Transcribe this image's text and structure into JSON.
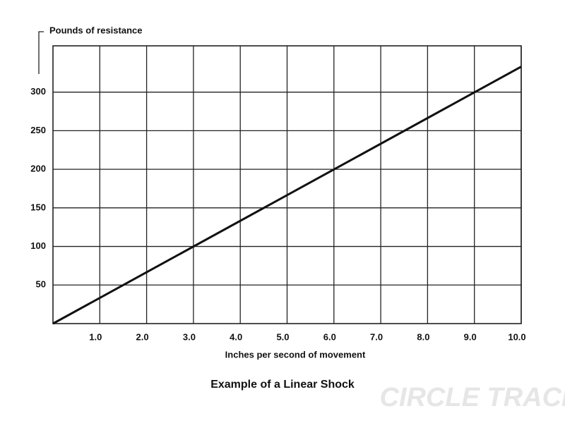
{
  "chart_data": {
    "type": "line",
    "title": "Example of a Linear Shock",
    "y_label": "Pounds of resistance",
    "x_label": "Inches per second of movement",
    "watermark": "CIRCLE TRACK",
    "x": [
      0,
      10
    ],
    "series": [
      {
        "color": "#111111",
        "values": [
          0,
          333
        ]
      }
    ],
    "xlim": [
      0,
      10
    ],
    "xticks": [
      {
        "value": 1,
        "label": "1.0"
      },
      {
        "value": 2,
        "label": "2.0"
      },
      {
        "value": 3,
        "label": "3.0"
      },
      {
        "value": 4,
        "label": "4.0"
      },
      {
        "value": 5,
        "label": "5.0"
      },
      {
        "value": 6,
        "label": "6.0"
      },
      {
        "value": 7,
        "label": "7.0"
      },
      {
        "value": 8,
        "label": "8.0"
      },
      {
        "value": 9,
        "label": "9.0"
      },
      {
        "value": 10,
        "label": "10.0"
      }
    ],
    "ylim": [
      0,
      360
    ],
    "yticks": [
      50,
      100,
      150,
      200,
      250,
      300
    ],
    "grid": true
  }
}
